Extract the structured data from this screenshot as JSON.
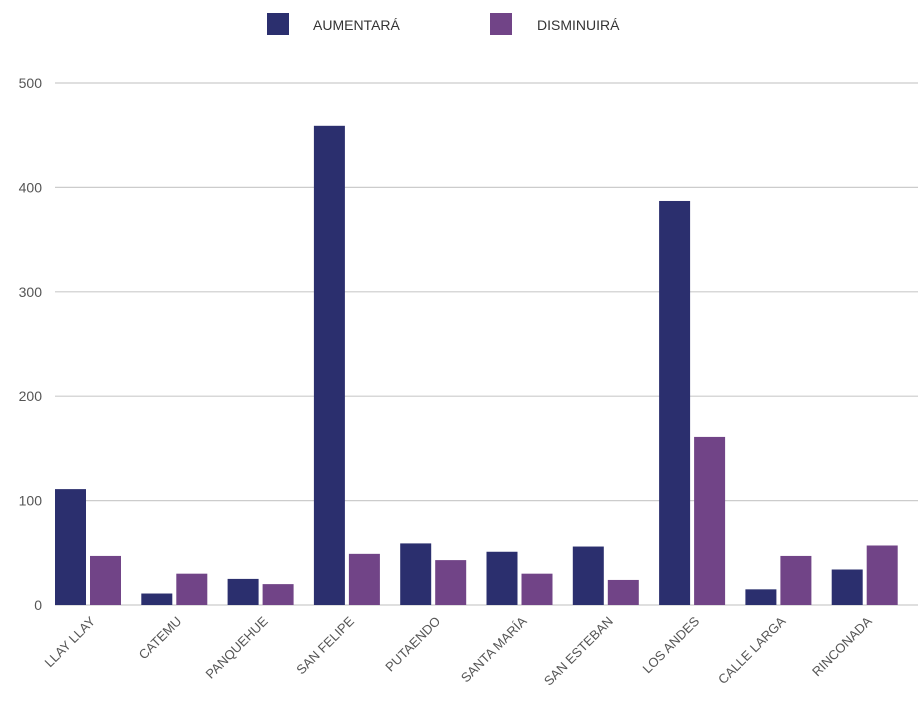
{
  "chart_data": {
    "type": "bar",
    "categories": [
      "LLAY LLAY",
      "CATEMU",
      "PANQUEHUE",
      "SAN FELIPE",
      "PUTAENDO",
      "SANTA MARÍA",
      "SAN ESTEBAN",
      "LOS ANDES",
      "CALLE LARGA",
      "RINCONADA"
    ],
    "series": [
      {
        "name": "AUMENTARÁ",
        "color": "#2b2f6e",
        "values": [
          111,
          11,
          25,
          459,
          59,
          51,
          56,
          387,
          15,
          34
        ]
      },
      {
        "name": "DISMINUIRÁ",
        "color": "#714487",
        "values": [
          47,
          30,
          20,
          49,
          43,
          30,
          24,
          161,
          47,
          57
        ]
      }
    ],
    "ylim": [
      0,
      500
    ],
    "yticks": [
      0,
      100,
      200,
      300,
      400,
      500
    ],
    "grid": true,
    "legend": "top-center",
    "title": "",
    "xlabel": "",
    "ylabel": ""
  }
}
